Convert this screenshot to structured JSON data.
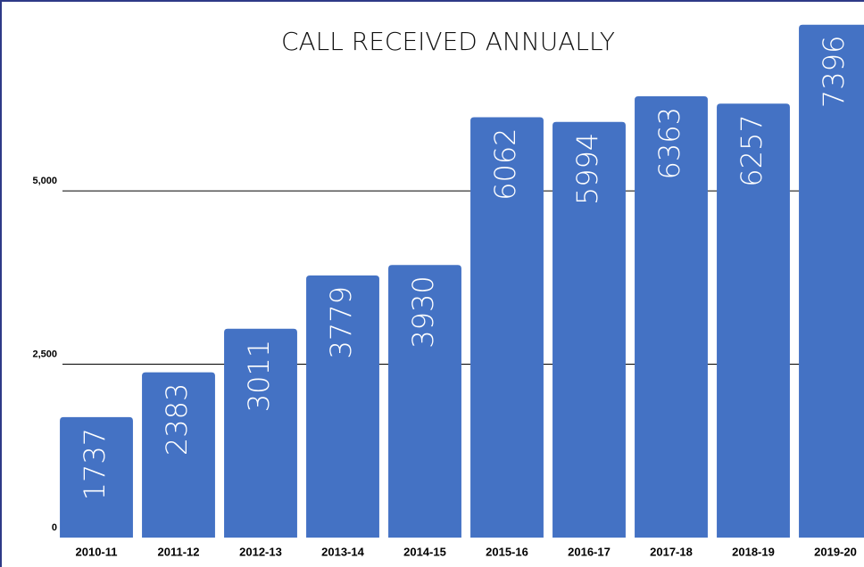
{
  "chart_data": {
    "type": "bar",
    "title": "CALL RECEIVED ANNUALLY",
    "categories": [
      "2010-11",
      "2011-12",
      "2012-13",
      "2013-14",
      "2014-15",
      "2015-16",
      "2016-17",
      "2017-18",
      "2018-19",
      "2019-20"
    ],
    "values": [
      1737,
      2383,
      3011,
      3779,
      3930,
      6062,
      5994,
      6363,
      6257,
      7396
    ],
    "color": "#4472c4",
    "ylim": [
      0,
      7500
    ],
    "yticks": [
      0,
      {
        "value": 2500,
        "label": "2,500"
      },
      {
        "value": 5000,
        "label": "5,000"
      }
    ],
    "grid": true
  }
}
